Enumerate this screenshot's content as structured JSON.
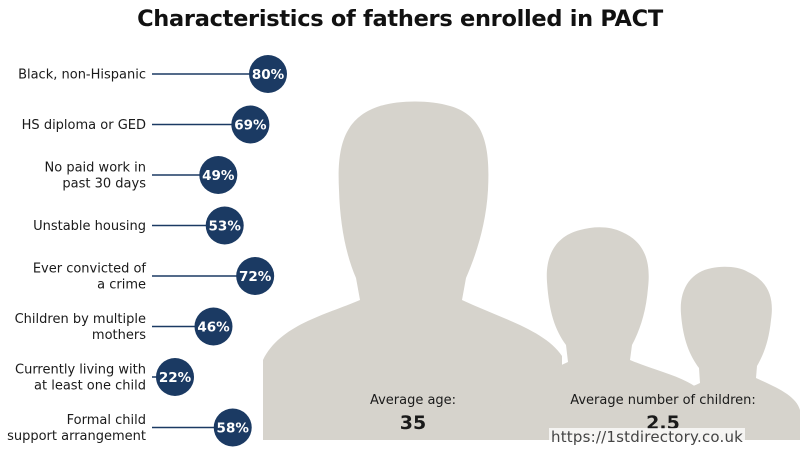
{
  "chart_data": {
    "type": "bar",
    "title": "Characteristics of fathers enrolled in PACT",
    "unit": "%",
    "categories": [
      [
        "Black, non-Hispanic"
      ],
      [
        "HS diploma or GED"
      ],
      [
        "No paid work in",
        "past 30 days"
      ],
      [
        "Unstable housing"
      ],
      [
        "Ever convicted of",
        "a crime"
      ],
      [
        "Children by multiple",
        "mothers"
      ],
      [
        "Currently living with",
        "at least one child"
      ],
      [
        "Formal child",
        "support arrangement"
      ]
    ],
    "values": [
      80,
      69,
      49,
      53,
      72,
      46,
      22,
      58
    ],
    "value_labels": [
      "80%",
      "69%",
      "49%",
      "53%",
      "72%",
      "46%",
      "22%",
      "58%"
    ],
    "xlim": [
      0,
      100
    ],
    "stats": [
      {
        "label": "Average age:",
        "value": "35"
      },
      {
        "label": "Average number of children:",
        "value": "2.5"
      }
    ]
  },
  "colors": {
    "marker": "#1b3a63",
    "leader_line": "#1b3a63",
    "silhouette": "#d6d3cc",
    "title": "#111111"
  },
  "icons": {
    "adult": "adult-silhouette-icon",
    "child_large": "child-silhouette-icon",
    "child_small": "child-silhouette-icon"
  },
  "watermark": "https://1stdirectory.co.uk"
}
